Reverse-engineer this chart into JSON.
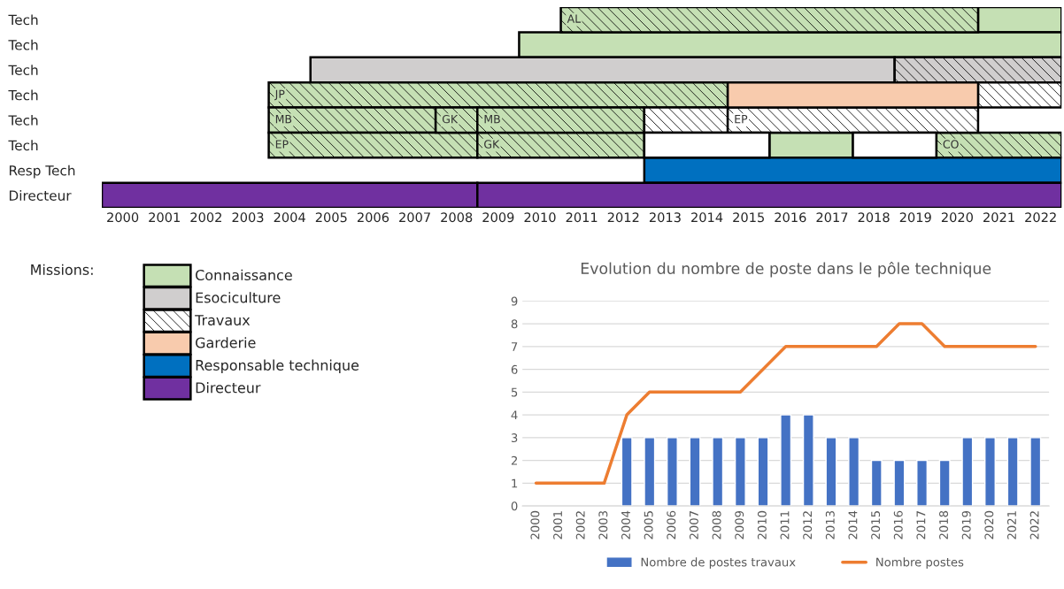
{
  "chart_data": [
    {
      "type": "bar",
      "orientation": "horizontal",
      "categories": [
        "Tech",
        "Tech",
        "Tech",
        "Tech",
        "Tech",
        "Tech",
        "Resp Tech",
        "Directeur"
      ],
      "xlim": [
        1999.5,
        2022.5
      ],
      "xticks": [
        2000,
        2001,
        2002,
        2003,
        2004,
        2005,
        2006,
        2007,
        2008,
        2009,
        2010,
        2011,
        2012,
        2013,
        2014,
        2015,
        2016,
        2017,
        2018,
        2019,
        2020,
        2021,
        2022
      ],
      "legend": "bottom left",
      "legend_title": "Missions:",
      "series": [
        {
          "name": "Connaissance",
          "color": "#c5e0b4",
          "base": [
            2020.5,
            2009.5,
            null,
            null,
            null,
            2015.5,
            null,
            null
          ],
          "values": [
            2,
            13,
            null,
            null,
            null,
            2,
            null,
            null
          ]
        },
        {
          "name": "Esociculture",
          "color": "#d0cece",
          "base": [
            null,
            null,
            2004.5,
            null,
            null,
            null,
            null,
            null
          ],
          "values": [
            null,
            null,
            14,
            null,
            null,
            null,
            null,
            null
          ]
        },
        {
          "name": "Travaux",
          "color": "#ffffff",
          "line_style": "dashed",
          "colors": [
            "#c5e0b4",
            null,
            "#d0cece",
            "#c5e0b4",
            "#c5e0b4",
            "#c5e0b4",
            null,
            null
          ],
          "base": [
            2010.5,
            null,
            2018.5,
            2003.5,
            2003.5,
            2003.5,
            null,
            null
          ],
          "values": [
            10,
            null,
            4,
            11,
            4,
            5,
            null,
            null
          ],
          "value_labels": [
            "AL",
            null,
            null,
            "JP",
            "MB",
            "EP",
            null,
            null
          ]
        },
        {
          "line_style": "dashed",
          "colors": [
            null,
            null,
            null,
            "#ffffff",
            "#c5e0b4",
            "#c5e0b4",
            null,
            null
          ],
          "base": [
            null,
            null,
            null,
            2020.5,
            2007.5,
            2008.5,
            null,
            null
          ],
          "values": [
            null,
            null,
            null,
            2,
            1,
            4,
            null,
            null
          ],
          "value_labels": [
            null,
            null,
            null,
            null,
            "GK",
            "GK",
            null,
            null
          ]
        },
        {
          "line_style": "dashed",
          "colors": [
            null,
            null,
            null,
            null,
            "#c5e0b4",
            "#c5e0b4",
            null,
            null
          ],
          "base": [
            null,
            null,
            null,
            null,
            2008.5,
            2019.5,
            null,
            null
          ],
          "values": [
            null,
            null,
            null,
            null,
            4,
            3,
            null,
            null
          ],
          "value_labels": [
            null,
            null,
            null,
            null,
            "MB",
            "CO",
            null,
            null
          ]
        },
        {
          "color": "#ffffff",
          "line_style": "dashed",
          "base": [
            null,
            null,
            null,
            null,
            2012.5,
            null,
            null,
            null
          ],
          "values": [
            null,
            null,
            null,
            null,
            2,
            null,
            null,
            null
          ]
        },
        {
          "color": "#ffffff",
          "line_style": "dashed",
          "base": [
            null,
            null,
            null,
            null,
            2014.5,
            null,
            null,
            null
          ],
          "values": [
            null,
            null,
            null,
            null,
            6,
            null,
            null,
            null
          ],
          "value_labels": [
            null,
            null,
            null,
            null,
            "EP",
            null,
            null,
            null
          ]
        },
        {
          "name": "Garderie",
          "color": "#f8cbad",
          "base": [
            null,
            null,
            null,
            2014.5,
            null,
            null,
            null,
            null
          ],
          "values": [
            null,
            null,
            null,
            6,
            null,
            null,
            null,
            null
          ]
        },
        {
          "name": "Responsable technique",
          "color": "#0070c0",
          "base": [
            null,
            null,
            null,
            null,
            null,
            null,
            2012.5,
            null
          ],
          "values": [
            null,
            null,
            null,
            null,
            null,
            null,
            10,
            null
          ]
        },
        {
          "name": "Directeur",
          "color": "#7030a0",
          "base": [
            null,
            null,
            null,
            null,
            null,
            null,
            null,
            1999.5
          ],
          "values": [
            null,
            null,
            null,
            null,
            null,
            null,
            null,
            9
          ]
        },
        {
          "color": "#7030a0",
          "base": [
            null,
            null,
            null,
            null,
            null,
            null,
            null,
            2008.5
          ],
          "values": [
            null,
            null,
            null,
            null,
            null,
            null,
            null,
            14
          ]
        },
        {
          "color": "#ffffff",
          "base": [
            null,
            null,
            null,
            null,
            null,
            2012.5,
            null,
            null
          ],
          "values": [
            null,
            null,
            null,
            null,
            null,
            3,
            null,
            null
          ]
        },
        {
          "color": "#ffffff",
          "base": [
            null,
            null,
            null,
            null,
            null,
            2017.5,
            null,
            null
          ],
          "values": [
            null,
            null,
            null,
            null,
            null,
            2,
            null,
            null
          ]
        }
      ]
    },
    {
      "type": "bar",
      "title": "Evolution du nombre de poste dans le pôle technique",
      "categories": [
        "2000",
        "2001",
        "2002",
        "2003",
        "2004",
        "2005",
        "2006",
        "2007",
        "2008",
        "2009",
        "2010",
        "2011",
        "2012",
        "2013",
        "2014",
        "2015",
        "2016",
        "2017",
        "2018",
        "2019",
        "2020",
        "2021",
        "2022"
      ],
      "ylim": [
        0,
        9
      ],
      "yticks": [
        0,
        1,
        2,
        3,
        4,
        5,
        6,
        7,
        8,
        9
      ],
      "grid": "y",
      "legend": "bottom",
      "series": [
        {
          "name": "Nombre de postes travaux",
          "type": "bar",
          "color": "#4472c4",
          "values": [
            null,
            null,
            null,
            null,
            3,
            3,
            3,
            3,
            3,
            3,
            3,
            4,
            4,
            3,
            3,
            2,
            2,
            2,
            2,
            3,
            3,
            3,
            3
          ]
        },
        {
          "name": "Nombre postes",
          "type": "line",
          "color": "#ed7d31",
          "values": [
            1,
            1,
            1,
            1,
            4,
            5,
            5,
            5,
            5,
            5,
            6,
            7,
            7,
            7,
            7,
            7,
            8,
            8,
            7,
            7,
            7,
            7,
            7
          ]
        }
      ]
    }
  ]
}
